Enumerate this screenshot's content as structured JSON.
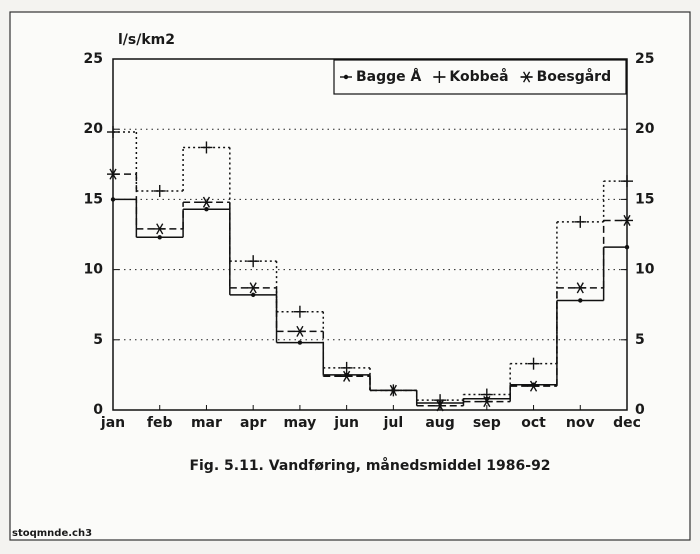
{
  "chart_data": {
    "type": "line",
    "step": true,
    "y_label": "l/s/km2",
    "caption": "Fig. 5.11. Vandføring, månedsmiddel 1986-92",
    "footer": "stoqmnde.ch3",
    "categories": [
      "jan",
      "feb",
      "mar",
      "apr",
      "may",
      "jun",
      "jul",
      "aug",
      "sep",
      "oct",
      "nov",
      "dec"
    ],
    "series": [
      {
        "name": "Bagge Å",
        "color": "#111111",
        "linestyle": "solid",
        "marker": "dot",
        "values": [
          15,
          12.3,
          14.3,
          8.2,
          4.8,
          2.5,
          1.4,
          0.5,
          0.8,
          1.8,
          7.8,
          11.6
        ]
      },
      {
        "name": "Kobbeå",
        "color": "#111111",
        "linestyle": "dotted",
        "marker": "plus",
        "values": [
          19.8,
          15.6,
          18.7,
          10.6,
          7.0,
          3.0,
          1.4,
          0.7,
          1.1,
          3.3,
          13.4,
          16.3
        ]
      },
      {
        "name": "Boesgård",
        "color": "#111111",
        "linestyle": "dashed",
        "marker": "asterisk",
        "values": [
          16.8,
          12.9,
          14.8,
          8.7,
          5.6,
          2.4,
          1.4,
          0.3,
          0.6,
          1.7,
          8.7,
          13.5
        ]
      }
    ],
    "ylim": [
      0,
      25
    ],
    "yticks": [
      0,
      5,
      10,
      15,
      20,
      25
    ],
    "y2lim": [
      0,
      25
    ],
    "y2ticks": [
      0,
      5,
      10,
      15,
      20,
      25
    ],
    "grid": true,
    "legend": "upper right"
  }
}
